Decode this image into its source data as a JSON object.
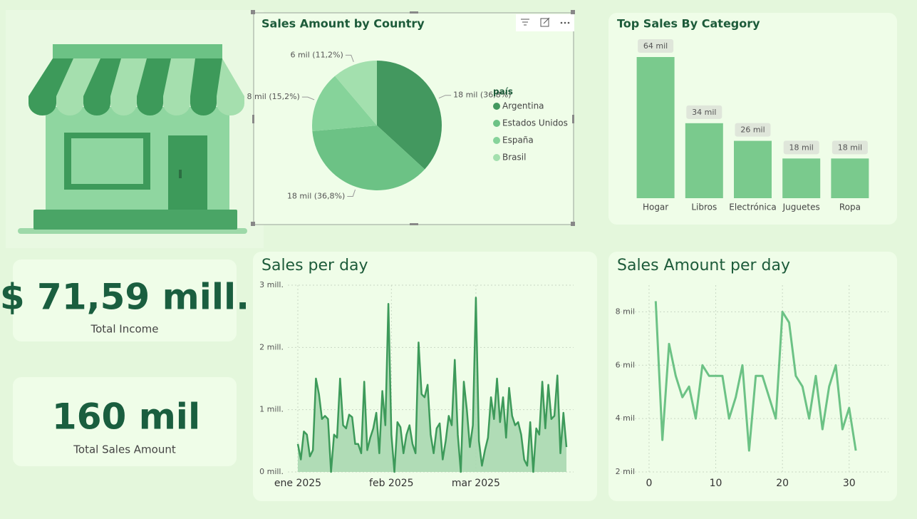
{
  "cards": [
    {
      "value": "$ 71,59 mill.",
      "label": "Total Income"
    },
    {
      "value": "160 mil",
      "label": "Total Sales Amount"
    }
  ],
  "chart_data": [
    {
      "type": "pie",
      "title": "Sales Amount by Country",
      "legend_title": "país",
      "categories": [
        "Argentina",
        "Estados Unidos",
        "España",
        "Brasil"
      ],
      "values": [
        36.8,
        36.8,
        15.2,
        11.2
      ],
      "value_labels": [
        "18 mil (36,8%)",
        "18 mil (36,8%)",
        "8 mil (15,2%)",
        "6 mil (11,2%)"
      ],
      "colors": [
        "#43985f",
        "#6cc285",
        "#86d39a",
        "#a3e0ae"
      ]
    },
    {
      "type": "bar",
      "title": "Top Sales By Category",
      "categories": [
        "Hogar",
        "Libros",
        "Electrónica",
        "Juguetes",
        "Ropa"
      ],
      "values": [
        64,
        34,
        26,
        18,
        18
      ],
      "value_labels": [
        "64 mil",
        "34 mil",
        "26 mil",
        "18 mil",
        "18 mil"
      ],
      "color": "#7aca8d"
    },
    {
      "type": "area",
      "title": "Sales per day",
      "categories": [
        "ene 2025",
        null,
        null,
        null,
        null,
        null,
        null,
        null,
        null,
        null,
        null,
        null,
        null,
        null,
        null,
        null,
        null,
        null,
        null,
        null,
        null,
        null,
        null,
        null,
        null,
        null,
        null,
        null,
        null,
        null,
        null,
        "feb 2025",
        null,
        null,
        null,
        null,
        null,
        null,
        null,
        null,
        null,
        null,
        null,
        null,
        null,
        null,
        null,
        null,
        null,
        null,
        null,
        null,
        null,
        null,
        null,
        null,
        null,
        null,
        null,
        "mar 2025",
        null,
        null,
        null,
        null,
        null,
        null,
        null,
        null,
        null,
        null,
        null,
        null,
        null,
        null,
        null,
        null,
        null,
        null,
        null,
        null,
        null,
        null,
        null,
        null,
        null,
        null,
        null,
        null,
        null,
        null
      ],
      "values": [
        0.45,
        0.2,
        0.65,
        0.6,
        0.25,
        0.35,
        1.5,
        1.25,
        0.85,
        0.9,
        0.85,
        0.0,
        0.6,
        0.55,
        1.5,
        0.75,
        0.7,
        0.92,
        0.88,
        0.45,
        0.45,
        0.3,
        1.45,
        0.35,
        0.55,
        0.7,
        0.95,
        0.3,
        1.3,
        0.75,
        2.7,
        0.6,
        0.0,
        0.8,
        0.72,
        0.3,
        0.6,
        0.75,
        0.45,
        0.3,
        2.08,
        1.25,
        1.2,
        1.4,
        0.6,
        0.3,
        0.7,
        0.78,
        0.2,
        0.5,
        0.9,
        0.75,
        1.8,
        0.6,
        0.0,
        1.45,
        1.0,
        0.4,
        0.75,
        2.8,
        0.5,
        0.1,
        0.35,
        0.55,
        1.2,
        0.85,
        1.5,
        0.8,
        1.2,
        0.55,
        1.35,
        0.9,
        0.75,
        0.8,
        0.6,
        0.2,
        0.1,
        0.8,
        0.0,
        0.7,
        0.6,
        1.45,
        0.7,
        1.4,
        0.85,
        0.9,
        1.55,
        0.3,
        0.95,
        0.4
      ],
      "color": "#3d9a5a",
      "fill": "#a8d8b0",
      "ylim": [
        0,
        3
      ],
      "yticks": [
        {
          "value": 0,
          "label": "0 mill."
        },
        {
          "value": 1,
          "label": "1 mill."
        },
        {
          "value": 2,
          "label": "2 mill."
        },
        {
          "value": 3,
          "label": "3 mill."
        }
      ],
      "grid": true
    },
    {
      "type": "line",
      "title": "Sales Amount per day",
      "x": [
        1,
        2,
        3,
        4,
        5,
        6,
        7,
        8,
        9,
        10,
        11,
        12,
        13,
        14,
        15,
        16,
        17,
        18,
        19,
        20,
        21,
        22,
        23,
        24,
        25,
        26,
        27,
        28,
        29,
        30,
        31
      ],
      "values": [
        8.4,
        3.2,
        6.8,
        5.6,
        4.8,
        5.2,
        4.0,
        6.0,
        5.6,
        5.6,
        5.6,
        4.0,
        4.8,
        6.0,
        2.8,
        5.6,
        5.6,
        4.8,
        4.0,
        8.0,
        7.6,
        5.6,
        5.2,
        4.0,
        5.6,
        3.6,
        5.2,
        6.0,
        3.6,
        4.4,
        2.8
      ],
      "color": "#6cc285",
      "xlim": [
        -4.8,
        35.9
      ],
      "xticks": [
        0,
        10,
        20,
        30
      ],
      "ylim": [
        2,
        9
      ],
      "yticks": [
        {
          "value": 2,
          "label": "2 mil"
        },
        {
          "value": 4,
          "label": "4 mil"
        },
        {
          "value": 6,
          "label": "6 mil"
        },
        {
          "value": 8,
          "label": "8 mil"
        }
      ],
      "grid": true
    }
  ]
}
